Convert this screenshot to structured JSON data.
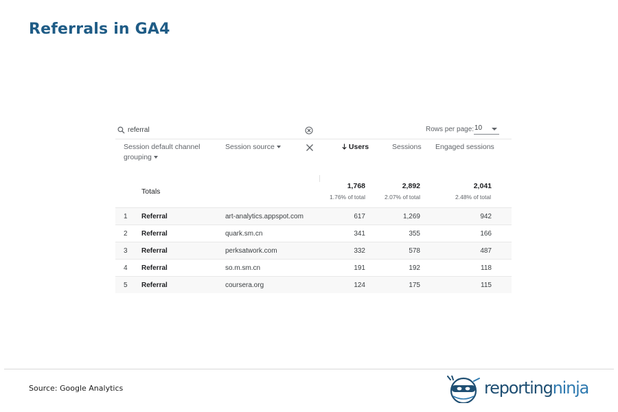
{
  "page": {
    "title": "Referrals in GA4",
    "source": "Source: Google Analytics"
  },
  "logo": {
    "word_a": "reporting",
    "word_b": "ninja"
  },
  "toolbar": {
    "search_value": "referral",
    "rows_per_page_label": "Rows per page:",
    "rows_per_page_value": "10"
  },
  "columns": {
    "dimension_1": "Session default channel grouping",
    "dimension_2": "Session source",
    "users": "Users",
    "sessions": "Sessions",
    "engaged": "Engaged sessions"
  },
  "totals": {
    "label": "Totals",
    "users": "1,768",
    "users_pct": "1.76% of total",
    "sessions": "2,892",
    "sessions_pct": "2.07% of total",
    "engaged": "2,041",
    "engaged_pct": "2.48% of total"
  },
  "rows": [
    {
      "idx": "1",
      "channel": "Referral",
      "source": "art-analytics.appspot.com",
      "users": "617",
      "sessions": "1,269",
      "engaged": "942"
    },
    {
      "idx": "2",
      "channel": "Referral",
      "source": "quark.sm.cn",
      "users": "341",
      "sessions": "355",
      "engaged": "166"
    },
    {
      "idx": "3",
      "channel": "Referral",
      "source": "perksatwork.com",
      "users": "332",
      "sessions": "578",
      "engaged": "487"
    },
    {
      "idx": "4",
      "channel": "Referral",
      "source": "so.m.sm.cn",
      "users": "191",
      "sessions": "192",
      "engaged": "118"
    },
    {
      "idx": "5",
      "channel": "Referral",
      "source": "coursera.org",
      "users": "124",
      "sessions": "175",
      "engaged": "115"
    }
  ],
  "icons": {
    "search": "search-icon",
    "clear": "clear-circle-icon",
    "remove": "close-icon",
    "dropdown": "caret-down-icon",
    "sort": "arrow-down-icon"
  },
  "colors": {
    "title": "#1f5c86",
    "logo_dark": "#1f4f73",
    "logo_light": "#2f7ab0"
  }
}
